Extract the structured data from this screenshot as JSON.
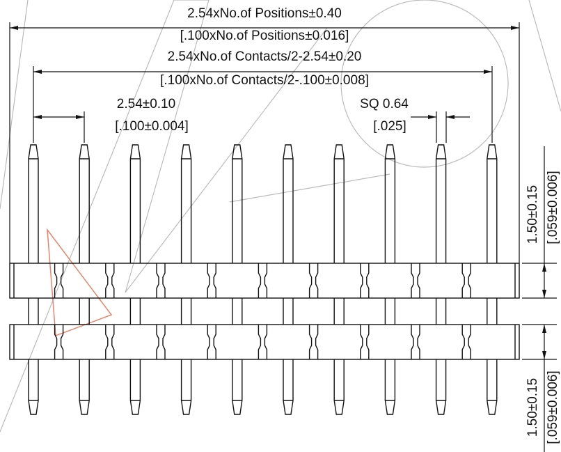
{
  "dimensions": {
    "overall_length": {
      "mm": "2.54xNo.of Positions±0.40",
      "inch": "[.100xNo.of Positions±0.016]"
    },
    "end_pin_span": {
      "mm": "2.54xNo.of Contacts/2-2.54±0.20",
      "inch": "[.100xNo.of Contacts/2-.100±0.008]"
    },
    "pitch": {
      "mm": "2.54±0.10",
      "inch": "[.100±0.004]"
    },
    "pin_size": {
      "mm": "SQ 0.64",
      "inch": "[.025]"
    },
    "housing_upper": {
      "mm": "1.50±0.15",
      "inch": "[.059±0.006]"
    },
    "housing_lower": {
      "mm": "1.50±0.15",
      "inch": "[.059±0.006]"
    }
  }
}
